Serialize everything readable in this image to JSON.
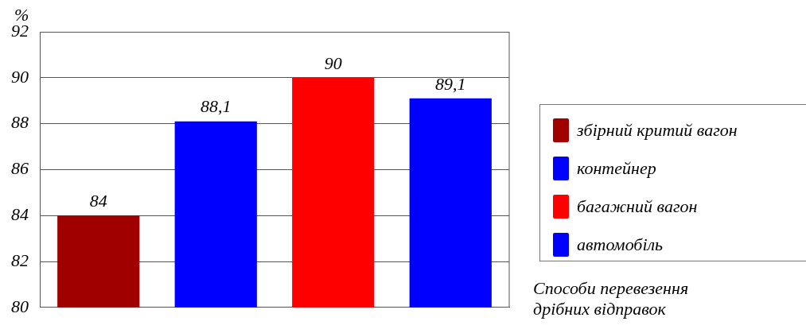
{
  "chart_data": {
    "type": "bar",
    "ylabel": "%",
    "xlabel": "Способи перевезення дрібних відправок",
    "categories": [
      null,
      null,
      null,
      null
    ],
    "series": [
      {
        "name": "збірний критий вагон",
        "color": "#a00000",
        "values": [
          84,
          null,
          null,
          null
        ],
        "value_labels": [
          "84",
          null,
          null,
          null
        ]
      },
      {
        "name": "контейнер",
        "color": "#0000ff",
        "values": [
          null,
          88.1,
          null,
          null
        ],
        "value_labels": [
          null,
          "88,1",
          null,
          null
        ]
      },
      {
        "name": "багажний вагон",
        "color": "#ff0000",
        "values": [
          null,
          null,
          90,
          null
        ],
        "value_labels": [
          null,
          null,
          "90",
          null
        ]
      },
      {
        "name": "автомобіль",
        "color": "#0000ff",
        "values": [
          null,
          null,
          null,
          89.1
        ],
        "value_labels": [
          null,
          null,
          null,
          "89,1"
        ]
      }
    ],
    "ylim": [
      80,
      92
    ],
    "yticks": [
      80,
      82,
      84,
      86,
      88,
      90,
      92
    ],
    "grid": "y",
    "legend": "right"
  }
}
